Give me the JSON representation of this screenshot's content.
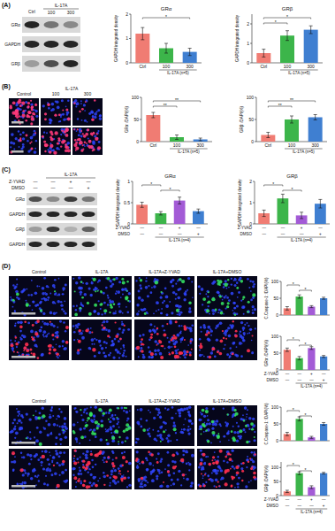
{
  "chart_data": [
    {
      "type": "bar",
      "title": "GRα",
      "y_label": "GAPDH integrated density",
      "categories": [
        "Ctrl",
        "100",
        "300"
      ],
      "values": [
        1.2,
        0.6,
        0.45
      ],
      "errors": [
        0.25,
        0.2,
        0.15
      ],
      "colors": [
        "#f07c73",
        "#3cb54a",
        "#3f7fd1"
      ],
      "ylim": [
        0,
        2
      ],
      "yticks": [
        0,
        1,
        2
      ],
      "x_group": {
        "label": "IL-17A (n=5)",
        "from": 1,
        "to": 2
      },
      "significance": [
        {
          "from": 0,
          "to": 2,
          "label": "*"
        }
      ]
    },
    {
      "type": "bar",
      "title": "GRβ",
      "y_label": "GAPDH integrated density",
      "categories": [
        "Ctrl",
        "100",
        "300"
      ],
      "values": [
        0.5,
        1.4,
        1.7
      ],
      "errors": [
        0.2,
        0.25,
        0.2
      ],
      "colors": [
        "#f07c73",
        "#3cb54a",
        "#3f7fd1"
      ],
      "ylim": [
        0,
        2.5
      ],
      "yticks": [
        0,
        1,
        2
      ],
      "x_group": {
        "label": "IL-17A (n=5)",
        "from": 1,
        "to": 2
      },
      "significance": [
        {
          "from": 0,
          "to": 1,
          "label": "*"
        },
        {
          "from": 0,
          "to": 2,
          "label": "*"
        }
      ]
    },
    {
      "type": "bar",
      "y_label": "GRα⁺/DAPI(%)",
      "categories": [
        "Ctrl",
        "100",
        "300"
      ],
      "values": [
        60,
        10,
        5
      ],
      "errors": [
        6,
        5,
        3
      ],
      "colors": [
        "#f07c73",
        "#3cb54a",
        "#3f7fd1"
      ],
      "ylim": [
        0,
        100
      ],
      "yticks": [
        0,
        50,
        100
      ],
      "x_group": {
        "label": "IL-17A (n=5)",
        "from": 1,
        "to": 2
      },
      "significance": [
        {
          "from": 0,
          "to": 1,
          "label": "**"
        },
        {
          "from": 0,
          "to": 2,
          "label": "**"
        }
      ]
    },
    {
      "type": "bar",
      "y_label": "GRβ⁺/DAPI(%)",
      "categories": [
        "Ctrl",
        "100",
        "300"
      ],
      "values": [
        15,
        50,
        55
      ],
      "errors": [
        6,
        8,
        6
      ],
      "colors": [
        "#f07c73",
        "#3cb54a",
        "#3f7fd1"
      ],
      "ylim": [
        0,
        100
      ],
      "yticks": [
        0,
        50,
        100
      ],
      "x_group": {
        "label": "IL-17A (n=5)",
        "from": 1,
        "to": 2
      },
      "significance": [
        {
          "from": 0,
          "to": 1,
          "label": "**"
        },
        {
          "from": 0,
          "to": 2,
          "label": "**"
        }
      ]
    },
    {
      "type": "bar",
      "title": "GRα",
      "y_label": "GAPDH integrated density",
      "categories": [
        null,
        null,
        null,
        null
      ],
      "values": [
        0.45,
        0.25,
        0.55,
        0.3
      ],
      "errors": [
        0.06,
        0.04,
        0.08,
        0.05
      ],
      "colors": [
        "#f07c73",
        "#3cb54a",
        "#a35bd6",
        "#3f7fd1"
      ],
      "ylim": [
        0,
        1
      ],
      "yticks": [
        0,
        0.5,
        1
      ],
      "conditions": [
        {
          "name": "Z-YVAD",
          "marks": [
            "—",
            "—",
            "+",
            "—"
          ]
        },
        {
          "name": "DMSO",
          "marks": [
            "—",
            "—",
            "—",
            "+"
          ]
        }
      ],
      "x_group": {
        "label": "IL-17A (n=4)",
        "from": 1,
        "to": 3
      },
      "significance": [
        {
          "from": 0,
          "to": 1,
          "label": "*"
        },
        {
          "from": 1,
          "to": 2,
          "label": "*"
        }
      ]
    },
    {
      "type": "bar",
      "title": "GRβ",
      "y_label": "GAPDH integrated density",
      "categories": [
        null,
        null,
        null,
        null
      ],
      "values": [
        0.5,
        1.2,
        0.4,
        0.95
      ],
      "errors": [
        0.15,
        0.2,
        0.15,
        0.2
      ],
      "colors": [
        "#f07c73",
        "#3cb54a",
        "#a35bd6",
        "#3f7fd1"
      ],
      "ylim": [
        0,
        2
      ],
      "yticks": [
        0,
        1,
        2
      ],
      "conditions": [
        {
          "name": "Z-YVAD",
          "marks": [
            "—",
            "—",
            "+",
            "—"
          ]
        },
        {
          "name": "DMSO",
          "marks": [
            "—",
            "—",
            "—",
            "+"
          ]
        }
      ],
      "x_group": {
        "label": "IL-17A (n=4)",
        "from": 1,
        "to": 3
      },
      "significance": [
        {
          "from": 0,
          "to": 1,
          "label": "*"
        },
        {
          "from": 1,
          "to": 2,
          "label": "*"
        }
      ]
    },
    {
      "type": "bar",
      "y_label": "C.Caspase-1⁺/DAPI(%)",
      "categories": [
        null,
        null,
        null,
        null
      ],
      "values": [
        20,
        55,
        25,
        50
      ],
      "errors": [
        5,
        5,
        3,
        3
      ],
      "colors": [
        "#f07c73",
        "#3cb54a",
        "#a35bd6",
        "#3f7fd1"
      ],
      "ylim": [
        0,
        100
      ],
      "yticks": [
        0,
        50,
        100
      ],
      "significance": [
        {
          "from": 0,
          "to": 1,
          "label": "*"
        },
        {
          "from": 1,
          "to": 2,
          "label": "*"
        }
      ]
    },
    {
      "type": "bar",
      "y_label": "GRα⁺/DAPI(%)",
      "categories": [
        null,
        null,
        null,
        null
      ],
      "values": [
        60,
        35,
        65,
        40
      ],
      "errors": [
        5,
        5,
        4,
        3
      ],
      "colors": [
        "#f07c73",
        "#3cb54a",
        "#a35bd6",
        "#3f7fd1"
      ],
      "ylim": [
        0,
        100
      ],
      "yticks": [
        0,
        50,
        100
      ],
      "conditions": [
        {
          "name": "Z-YVAD",
          "marks": [
            "—",
            "—",
            "+",
            "—"
          ]
        },
        {
          "name": "DMSO",
          "marks": [
            "—",
            "—",
            "—",
            "+"
          ]
        }
      ],
      "x_group": {
        "label": "IL-17A (n=4)",
        "from": 1,
        "to": 3
      },
      "significance": [
        {
          "from": 0,
          "to": 1,
          "label": "*"
        },
        {
          "from": 1,
          "to": 2,
          "label": "*"
        }
      ]
    },
    {
      "type": "bar",
      "y_label": "C.Caspase-1⁺/DAPI(%)",
      "categories": [
        null,
        null,
        null,
        null
      ],
      "values": [
        20,
        65,
        10,
        50
      ],
      "errors": [
        5,
        6,
        3,
        4
      ],
      "colors": [
        "#f07c73",
        "#3cb54a",
        "#a35bd6",
        "#3f7fd1"
      ],
      "ylim": [
        0,
        100
      ],
      "yticks": [
        0,
        50,
        100
      ],
      "significance": [
        {
          "from": 0,
          "to": 1,
          "label": "*"
        },
        {
          "from": 1,
          "to": 2,
          "label": "*"
        }
      ]
    },
    {
      "type": "bar",
      "y_label": "GRβ⁺/DAPI(%)",
      "categories": [
        null,
        null,
        null,
        null
      ],
      "values": [
        15,
        80,
        30,
        80
      ],
      "errors": [
        4,
        5,
        5,
        3
      ],
      "colors": [
        "#f07c73",
        "#3cb54a",
        "#a35bd6",
        "#3f7fd1"
      ],
      "ylim": [
        0,
        120
      ],
      "yticks": [
        0,
        50,
        100
      ],
      "conditions": [
        {
          "name": "Z-YVAD",
          "marks": [
            "—",
            "—",
            "+",
            "—"
          ]
        },
        {
          "name": "DMSO",
          "marks": [
            "—",
            "—",
            "—",
            "+"
          ]
        }
      ],
      "x_group": {
        "label": "IL-17A (n=4)",
        "from": 1,
        "to": 3
      },
      "significance": [
        {
          "from": 0,
          "to": 1,
          "label": "*"
        },
        {
          "from": 1,
          "to": 2,
          "label": "*"
        }
      ]
    }
  ],
  "figure": {
    "panel_labels": [
      "(A)",
      "(B)",
      "(C)",
      "(D)"
    ],
    "blot_a": {
      "control": "Ctrl",
      "header": "IL-17A",
      "doses": [
        "100",
        "300"
      ],
      "rows": [
        "GRα",
        "GAPDH",
        "GRβ"
      ]
    },
    "images_b": {
      "control": "Control",
      "header": "IL-17A",
      "doses": [
        "100",
        "300"
      ]
    },
    "blot_c": {
      "header": "IL-17A",
      "conditions": [
        {
          "name": "Z-YVAD",
          "marks": [
            "—",
            "—",
            "+",
            "—"
          ]
        },
        {
          "name": "DMSO",
          "marks": [
            "—",
            "—",
            "—",
            "+"
          ]
        }
      ],
      "rows": [
        "GRα",
        "GAPDH",
        "GRβ",
        "GAPDH"
      ]
    },
    "images_d": [
      {
        "columns": [
          "Control",
          "IL-17A",
          "IL-17A+Z-YVAD",
          "IL-17A+DMSO"
        ]
      },
      {
        "columns": [
          "Control",
          "IL-17A",
          "IL-17A+Z-YVAD",
          "IL-17A+DMSO"
        ]
      }
    ]
  }
}
